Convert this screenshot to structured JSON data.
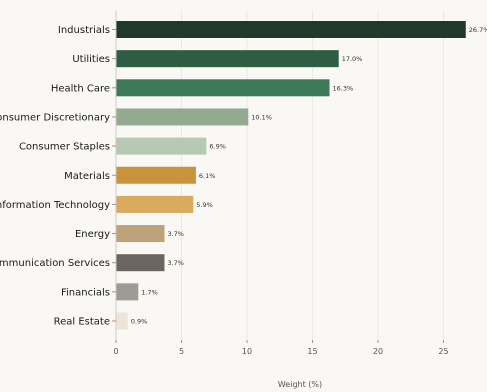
{
  "chart_data": {
    "type": "bar",
    "orientation": "horizontal",
    "categories": [
      "Industrials",
      "Utilities",
      "Health Care",
      "Consumer Discretionary",
      "Consumer Staples",
      "Materials",
      "Information Technology",
      "Energy",
      "Communication Services",
      "Financials",
      "Real Estate"
    ],
    "values": [
      26.7,
      17.0,
      16.3,
      10.1,
      6.9,
      6.1,
      5.9,
      3.7,
      3.7,
      1.7,
      0.9
    ],
    "value_labels": [
      "26.7%",
      "17.0%",
      "16.3%",
      "10.1%",
      "6.9%",
      "6.1%",
      "5.9%",
      "3.7%",
      "3.7%",
      "1.7%",
      "0.9%"
    ],
    "colors": [
      "#1f3a2b",
      "#2f5d43",
      "#3f7a58",
      "#93aa90",
      "#b7c9b3",
      "#c8933a",
      "#d9ab5f",
      "#bda27c",
      "#6b6560",
      "#9f9a93",
      "#ede5d8"
    ],
    "xlabel": "Weight (%)",
    "ylabel": "",
    "xlim": [
      0,
      28
    ],
    "xticks": [
      0,
      5,
      10,
      15,
      20,
      25
    ],
    "grid": true
  }
}
